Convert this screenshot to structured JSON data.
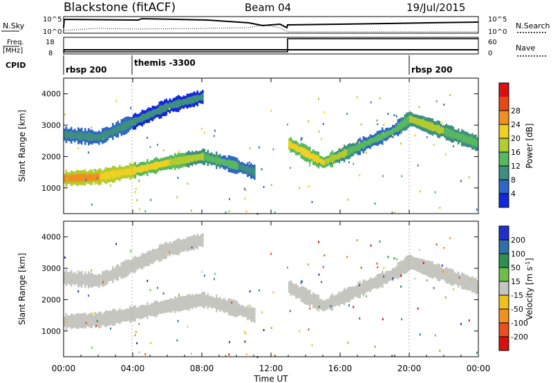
{
  "header": {
    "station": "Blackstone (fitACF)",
    "beam": "Beam 04",
    "date": "19/Jul/2015"
  },
  "top_panels": {
    "nsky_label": "N.Sky",
    "nsky_ticks": [
      "10^5",
      "10^0"
    ],
    "nsearch_label": "N.Search",
    "nsearch_ticks": [
      "10^5",
      "10^0"
    ],
    "freq_label": "Freq.",
    "freq_unit": "[MHz]",
    "freq_ticks": [
      "18",
      "8"
    ],
    "nave_label": "Nave",
    "nave_ticks": [
      "60",
      "0"
    ],
    "cpid_label": "CPID",
    "cpid_segments": [
      {
        "label": "rbsp 200",
        "start_hour": 0
      },
      {
        "label": "themis -3300",
        "start_hour": 4
      },
      {
        "label": "rbsp 200",
        "start_hour": 20
      }
    ]
  },
  "power_panel": {
    "ylabel": "Slant Range [km]",
    "yticks": [
      "1000",
      "2000",
      "3000",
      "4000"
    ],
    "colorbar_label": "Power [dB]",
    "colorbar_ticks": [
      "4",
      "8",
      "12",
      "16",
      "20",
      "24",
      "28"
    ],
    "colors": [
      "#1428d8",
      "#2f67c4",
      "#3f8f80",
      "#58b860",
      "#b0cc30",
      "#f0d020",
      "#f09020",
      "#e84818",
      "#d81010"
    ]
  },
  "velocity_panel": {
    "ylabel": "Slant Range [km]",
    "yticks": [
      "1000",
      "2000",
      "3000",
      "4000"
    ],
    "colorbar_label": "Velocity [m s",
    "colorbar_label_sup": "-1",
    "colorbar_label_end": "]",
    "colorbar_ticks": [
      "200",
      "100",
      "50",
      "15",
      "-15",
      "-50",
      "-100",
      "-200"
    ],
    "colors": [
      "#2030c8",
      "#3070a8",
      "#2f8f50",
      "#6cc04a",
      "#c6c6c0",
      "#f0c020",
      "#f09020",
      "#e85020",
      "#d81010"
    ]
  },
  "x_axis": {
    "label": "Time UT",
    "ticks": [
      "00:00",
      "04:00",
      "08:00",
      "12:00",
      "16:00",
      "20:00",
      "00:00"
    ]
  },
  "chart_data": {
    "type": "heatmap",
    "title": "Blackstone (fitACF)",
    "xlabel": "Time UT",
    "ylabel": "Slant Range [km]",
    "xlim": [
      0,
      24
    ],
    "ylim": [
      180,
      4500
    ],
    "freq_mhz": [
      {
        "start_hour": 0,
        "value": 10.5
      },
      {
        "start_hour": 13,
        "value": 10.5
      }
    ],
    "nave": [
      {
        "start_hour": 0,
        "value": 10
      },
      {
        "start_hour": 13,
        "value": 60
      }
    ],
    "echo_bands": [
      {
        "name": "lower band",
        "hours": [
          0,
          2,
          4,
          6,
          8,
          10,
          11
        ],
        "range_km": [
          1300,
          1350,
          1550,
          1800,
          2000,
          1700,
          1500
        ],
        "power_db": [
          22,
          22,
          20,
          18,
          14,
          10,
          8
        ]
      },
      {
        "name": "upper band",
        "hours": [
          0,
          2,
          4,
          6,
          8
        ],
        "range_km": [
          2700,
          2600,
          3100,
          3600,
          3900
        ],
        "power_db": [
          8,
          8,
          8,
          6,
          6
        ]
      },
      {
        "name": "evening band",
        "hours": [
          13,
          15,
          17,
          19,
          20,
          22,
          24
        ],
        "range_km": [
          2400,
          1800,
          2300,
          2800,
          3200,
          2800,
          2400
        ],
        "power_db": [
          20,
          18,
          12,
          10,
          14,
          14,
          12
        ]
      }
    ]
  }
}
